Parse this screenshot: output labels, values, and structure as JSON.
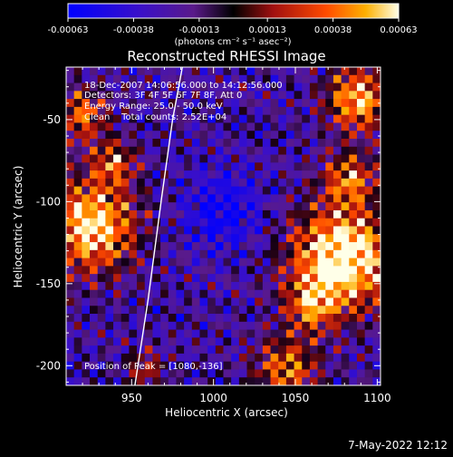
{
  "colorbar": {
    "ticks": [
      "-0.00063",
      "-0.00038",
      "-0.00013",
      "0.00013",
      "0.00038",
      "0.00063"
    ],
    "units_label": "(photons cm⁻² s⁻¹ asec⁻²)",
    "vmin": -0.00063,
    "vmax": 0.00063
  },
  "chart_data": {
    "type": "heatmap",
    "title": "Reconstructed RHESSI Image",
    "xlabel": "Heliocentric X (arcsec)",
    "ylabel": "Heliocentric Y (arcsec)",
    "xlim": [
      910,
      1102
    ],
    "ylim": [
      -212,
      -18
    ],
    "xticks": [
      950,
      1000,
      1050,
      1100
    ],
    "yticks": [
      -50,
      -100,
      -150,
      -200
    ],
    "annotations": [
      "18-Dec-2007 14:06:56.000 to 14:12:56.000",
      "Detectors: 3F 4F 5F 6F 7F 8F, Att 0",
      "Energy Range: 25.0 - 50.0 keV",
      "Clean    Total counts: 2.52E+04"
    ],
    "peak_label": "Position of Peak = [1080,-136]",
    "peak": [
      1080,
      -136
    ],
    "limb": [
      [
        952,
        -212
      ],
      [
        960,
        -160
      ],
      [
        968,
        -100
      ],
      [
        975,
        -50
      ],
      [
        981,
        -18
      ]
    ]
  },
  "footer": {
    "date": "7-May-2022 12:12"
  }
}
